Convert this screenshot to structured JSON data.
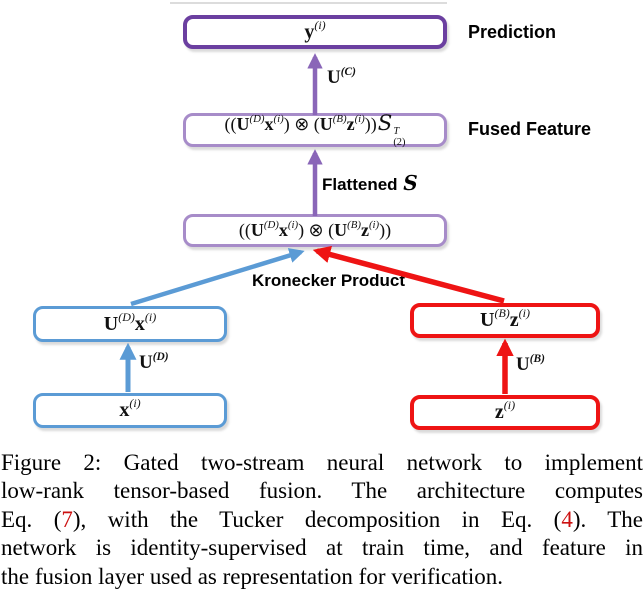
{
  "colors": {
    "dark_purple_border": "#6b3fa0",
    "light_purple_border": "#a78cc9",
    "purple_arrow": "#8a66b8",
    "blue": "#5b9bd5",
    "red": "#ee1414",
    "caption_ref_red": "#cc1111",
    "background": "#ffffff"
  },
  "diagram": {
    "labels": {
      "prediction": "Prediction",
      "fused_feature": "Fused Feature",
      "kronecker": "Kronecker Product"
    },
    "flattened_label": [
      {
        "t": "Flattened ",
        "b": 1
      },
      {
        "t": "S",
        "cls": "scriptS"
      }
    ],
    "y_box": [
      {
        "t": "y",
        "b": 1
      },
      {
        "t": "(i)",
        "sup": 1,
        "i": 1
      }
    ],
    "uc_label": [
      {
        "t": "U",
        "b": 1
      },
      {
        "t": "(C)",
        "sup": 1,
        "i": 1
      }
    ],
    "fused_box": [
      {
        "t": "(("
      },
      {
        "t": "U",
        "b": 1
      },
      {
        "t": "(D)",
        "sup": 1,
        "i": 1
      },
      {
        "t": "x",
        "b": 1
      },
      {
        "t": "(i)",
        "sup": 1,
        "i": 1
      },
      {
        "t": ") ⊗ ("
      },
      {
        "t": "U",
        "b": 1
      },
      {
        "t": "(B)",
        "sup": 1,
        "i": 1
      },
      {
        "t": "z",
        "b": 1
      },
      {
        "t": "(i)",
        "sup": 1,
        "i": 1
      },
      {
        "t": "))"
      },
      {
        "t": "S",
        "cls": "scriptS"
      },
      {
        "t": "T",
        "t2": "(2)",
        "stack": 1
      }
    ],
    "kron_box": [
      {
        "t": "(("
      },
      {
        "t": "U",
        "b": 1
      },
      {
        "t": "(D)",
        "sup": 1,
        "i": 1
      },
      {
        "t": "x",
        "b": 1
      },
      {
        "t": "(i)",
        "sup": 1,
        "i": 1
      },
      {
        "t": ") ⊗ ("
      },
      {
        "t": "U",
        "b": 1
      },
      {
        "t": "(B)",
        "sup": 1,
        "i": 1
      },
      {
        "t": "z",
        "b": 1
      },
      {
        "t": "(i)",
        "sup": 1,
        "i": 1
      },
      {
        "t": "))"
      }
    ],
    "udx_box": [
      {
        "t": "U",
        "b": 1
      },
      {
        "t": "(D)",
        "sup": 1,
        "i": 1
      },
      {
        "t": "x",
        "b": 1
      },
      {
        "t": "(i)",
        "sup": 1,
        "i": 1
      }
    ],
    "ud_label": [
      {
        "t": "U",
        "b": 1
      },
      {
        "t": "(D)",
        "sup": 1,
        "i": 1
      }
    ],
    "x_box": [
      {
        "t": "x",
        "b": 1
      },
      {
        "t": "(i)",
        "sup": 1,
        "i": 1
      }
    ],
    "ubz_box": [
      {
        "t": "U",
        "b": 1
      },
      {
        "t": "(B)",
        "sup": 1,
        "i": 1
      },
      {
        "t": "z",
        "b": 1
      },
      {
        "t": "(i)",
        "sup": 1,
        "i": 1
      }
    ],
    "ub_label": [
      {
        "t": "U",
        "b": 1
      },
      {
        "t": "(B)",
        "sup": 1,
        "i": 1
      }
    ],
    "z_box": [
      {
        "t": "z",
        "b": 1
      },
      {
        "t": "(i)",
        "sup": 1,
        "i": 1
      }
    ]
  },
  "caption": {
    "lines": [
      [
        {
          "t": "Figure 2: Gated two-stream neural network to implement"
        }
      ],
      [
        {
          "t": "low-rank tensor-based fusion. The architecture computes"
        }
      ],
      [
        {
          "t": "Eq. ("
        },
        {
          "t": "7",
          "cls": "red"
        },
        {
          "t": "), with the Tucker decomposition in Eq. ("
        },
        {
          "t": "4",
          "cls": "red"
        },
        {
          "t": "). The"
        }
      ],
      [
        {
          "t": "network is identity-supervised at train time, and feature in"
        }
      ],
      [
        {
          "t": "the fusion layer used as representation for verification."
        }
      ]
    ]
  }
}
